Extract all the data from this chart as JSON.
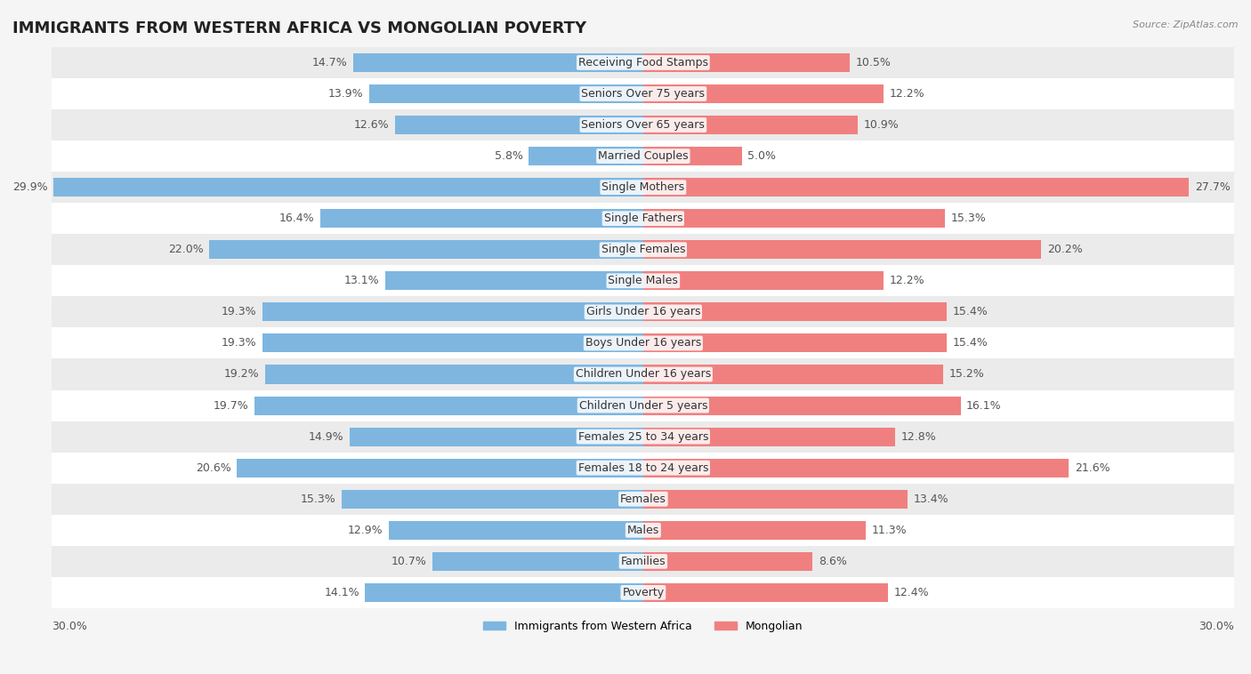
{
  "title": "IMMIGRANTS FROM WESTERN AFRICA VS MONGOLIAN POVERTY",
  "source": "Source: ZipAtlas.com",
  "categories": [
    "Poverty",
    "Families",
    "Males",
    "Females",
    "Females 18 to 24 years",
    "Females 25 to 34 years",
    "Children Under 5 years",
    "Children Under 16 years",
    "Boys Under 16 years",
    "Girls Under 16 years",
    "Single Males",
    "Single Females",
    "Single Fathers",
    "Single Mothers",
    "Married Couples",
    "Seniors Over 65 years",
    "Seniors Over 75 years",
    "Receiving Food Stamps"
  ],
  "left_values": [
    14.1,
    10.7,
    12.9,
    15.3,
    20.6,
    14.9,
    19.7,
    19.2,
    19.3,
    19.3,
    13.1,
    22.0,
    16.4,
    29.9,
    5.8,
    12.6,
    13.9,
    14.7
  ],
  "right_values": [
    12.4,
    8.6,
    11.3,
    13.4,
    21.6,
    12.8,
    16.1,
    15.2,
    15.4,
    15.4,
    12.2,
    20.2,
    15.3,
    27.7,
    5.0,
    10.9,
    12.2,
    10.5
  ],
  "left_color": "#7EB6E0",
  "right_color": "#F08080",
  "axis_max": 30.0,
  "axis_label_left": "30.0%",
  "axis_label_right": "30.0%",
  "legend_left": "Immigrants from Western Africa",
  "legend_right": "Mongolian",
  "background_color": "#f5f5f5",
  "bar_bg_color": "#ffffff",
  "title_fontsize": 13,
  "label_fontsize": 9,
  "bar_height": 0.6
}
